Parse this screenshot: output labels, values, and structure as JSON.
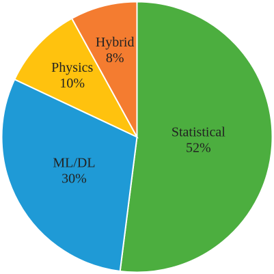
{
  "chart_data": {
    "type": "pie",
    "categories": [
      "Statistical",
      "ML/DL",
      "Physics",
      "Hybrid"
    ],
    "values": [
      52,
      30,
      10,
      8
    ],
    "value_labels": [
      "52%",
      "30%",
      "10%",
      "8%"
    ],
    "colors": [
      "#4cae3f",
      "#1f9ad6",
      "#ffc20e",
      "#f47c30"
    ]
  }
}
